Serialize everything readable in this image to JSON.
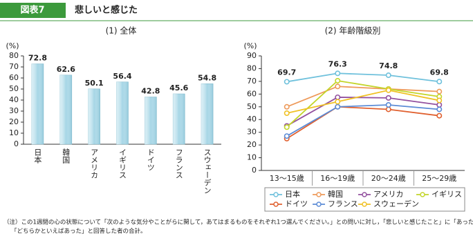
{
  "header": {
    "label": "図表7",
    "title": "悲しいと感じた"
  },
  "chart_data": [
    {
      "type": "bar",
      "title": "(1) 全体",
      "y_label": "(%)",
      "categories": [
        "日本",
        "韓国",
        "アメリカ",
        "イギリス",
        "ドイツ",
        "フランス",
        "スウェーデン"
      ],
      "values": [
        72.8,
        62.6,
        50.1,
        56.4,
        42.8,
        45.6,
        54.8
      ],
      "color": "#a6d6e6",
      "ylim": [
        0,
        80
      ],
      "yticks": [
        0,
        10,
        20,
        30,
        40,
        50,
        60,
        70,
        80
      ]
    },
    {
      "type": "line",
      "title": "(2) 年齢階級別",
      "y_label": "(%)",
      "categories": [
        "13～15歳",
        "16～19歳",
        "20～24歳",
        "25～29歳"
      ],
      "series": [
        {
          "name": "日本",
          "color": "#6fc1dc",
          "values": [
            69.7,
            76.3,
            74.8,
            69.8
          ],
          "labeled": true
        },
        {
          "name": "韓国",
          "color": "#ee9a5a",
          "values": [
            50,
            66,
            64,
            62
          ]
        },
        {
          "name": "アメリカ",
          "color": "#93519f",
          "values": [
            35,
            57.5,
            57,
            51.5
          ]
        },
        {
          "name": "イギリス",
          "color": "#c3d52a",
          "values": [
            34,
            70.5,
            64,
            58
          ]
        },
        {
          "name": "ドイツ",
          "color": "#e0602f",
          "values": [
            25,
            50,
            48,
            43
          ]
        },
        {
          "name": "フランス",
          "color": "#5b8bd6",
          "values": [
            27,
            50,
            51.5,
            48
          ]
        },
        {
          "name": "スウェーデン",
          "color": "#f0c125",
          "values": [
            45,
            54,
            63,
            55
          ]
        }
      ],
      "ylim": [
        0,
        90
      ],
      "yticks": [
        0,
        10,
        20,
        30,
        40,
        50,
        60,
        70,
        80,
        90
      ],
      "legend": "bottom-right"
    }
  ],
  "note": [
    "（注）この1週間の心の状態について「次のような気分やことがらに関して，あてはまるものをそれぞれ1つ選んでください。」との問いに対し，「悲しいと感じたこと」に「あった」",
    "「どちらかといえばあった」と回答した者の合計。"
  ]
}
